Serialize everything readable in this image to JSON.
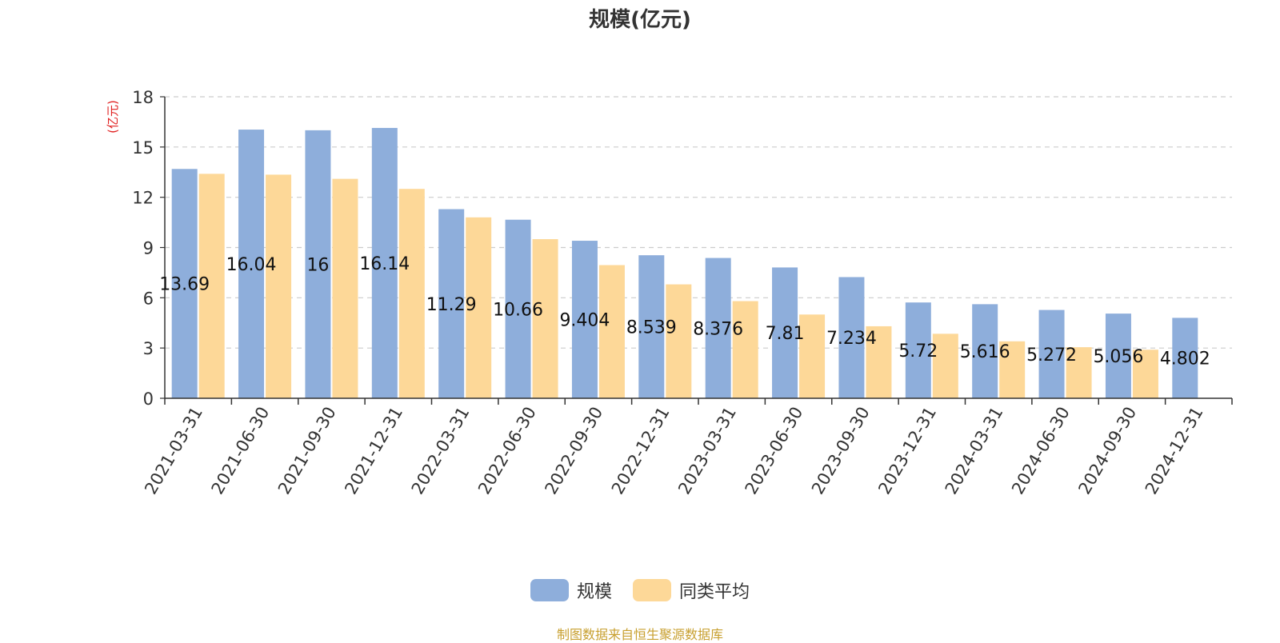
{
  "chart_data": {
    "type": "bar",
    "title": "规模(亿元)",
    "ylabel": "(亿元)",
    "ylim": [
      0,
      18
    ],
    "yticks": [
      0,
      3,
      6,
      9,
      12,
      15,
      18
    ],
    "grid": true,
    "legend_position": "bottom",
    "categories": [
      "2021-03-31",
      "2021-06-30",
      "2021-09-30",
      "2021-12-31",
      "2022-03-31",
      "2022-06-30",
      "2022-09-30",
      "2022-12-31",
      "2023-03-31",
      "2023-06-30",
      "2023-09-30",
      "2023-12-31",
      "2024-03-31",
      "2024-06-30",
      "2024-09-30",
      "2024-12-31"
    ],
    "series": [
      {
        "name": "规模",
        "color": "#8eaedb",
        "values": [
          13.69,
          16.04,
          16,
          16.14,
          11.29,
          10.66,
          9.404,
          8.539,
          8.376,
          7.81,
          7.234,
          5.72,
          5.616,
          5.272,
          5.056,
          4.802
        ],
        "labels": [
          "13.69",
          "16.04",
          "16",
          "16.14",
          "11.29",
          "10.66",
          "9.404",
          "8.539",
          "8.376",
          "7.81",
          "7.234",
          "5.72",
          "5.616",
          "5.272",
          "5.056",
          "4.802"
        ]
      },
      {
        "name": "同类平均",
        "color": "#fdd898",
        "values": [
          13.4,
          13.35,
          13.1,
          12.5,
          10.8,
          9.5,
          7.95,
          6.8,
          5.8,
          5.0,
          4.3,
          3.85,
          3.4,
          3.05,
          2.9,
          null
        ]
      }
    ]
  },
  "source_note": "制图数据来自恒生聚源数据库"
}
